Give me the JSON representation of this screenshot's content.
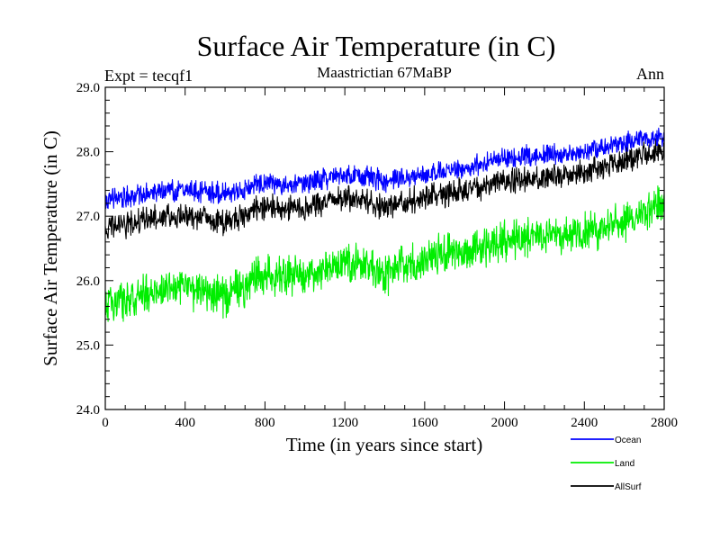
{
  "chart_data": {
    "type": "line",
    "title": "Surface Air Temperature (in C)",
    "subtitle_left": "Expt = tecqf1",
    "subtitle_center": "Maastrictian 67MaBP",
    "subtitle_right": "Ann",
    "xlabel": "Time (in years since start)",
    "ylabel": "Surface Air Temperature (in C)",
    "xlim": [
      0,
      2800
    ],
    "ylim": [
      24.0,
      29.0
    ],
    "x_ticks": [
      0,
      400,
      800,
      1200,
      1600,
      2000,
      2400,
      2800
    ],
    "x_tick_labels": [
      "0",
      "400",
      "800",
      "1200",
      "1600",
      "2000",
      "2400",
      "2800"
    ],
    "y_ticks": [
      24.0,
      25.0,
      26.0,
      27.0,
      28.0,
      29.0
    ],
    "y_tick_labels": [
      "24.0",
      "25.0",
      "26.0",
      "27.0",
      "28.0",
      "29.0"
    ],
    "series": [
      {
        "name": "Ocean",
        "color": "#0000ff",
        "x": [
          0,
          200,
          400,
          600,
          800,
          1000,
          1200,
          1400,
          1600,
          1800,
          2000,
          2200,
          2400,
          2600,
          2800
        ],
        "values": [
          27.25,
          27.35,
          27.4,
          27.35,
          27.5,
          27.5,
          27.65,
          27.55,
          27.65,
          27.75,
          27.9,
          27.95,
          28.0,
          28.15,
          28.25
        ],
        "noise_amplitude": 0.15
      },
      {
        "name": "Land",
        "color": "#00ee00",
        "x": [
          0,
          200,
          400,
          600,
          800,
          1000,
          1200,
          1400,
          1600,
          1800,
          2000,
          2200,
          2400,
          2600,
          2800
        ],
        "values": [
          25.6,
          25.8,
          25.9,
          25.75,
          26.1,
          26.05,
          26.3,
          26.1,
          26.35,
          26.45,
          26.6,
          26.7,
          26.75,
          26.9,
          27.2
        ],
        "noise_amplitude": 0.28
      },
      {
        "name": "AllSurf",
        "color": "#000000",
        "x": [
          0,
          200,
          400,
          600,
          800,
          1000,
          1200,
          1400,
          1600,
          1800,
          2000,
          2200,
          2400,
          2600,
          2800
        ],
        "values": [
          26.8,
          26.95,
          27.0,
          26.9,
          27.15,
          27.1,
          27.3,
          27.15,
          27.3,
          27.4,
          27.55,
          27.6,
          27.7,
          27.85,
          28.05
        ],
        "noise_amplitude": 0.18
      }
    ],
    "legend_position": "bottom-right"
  }
}
